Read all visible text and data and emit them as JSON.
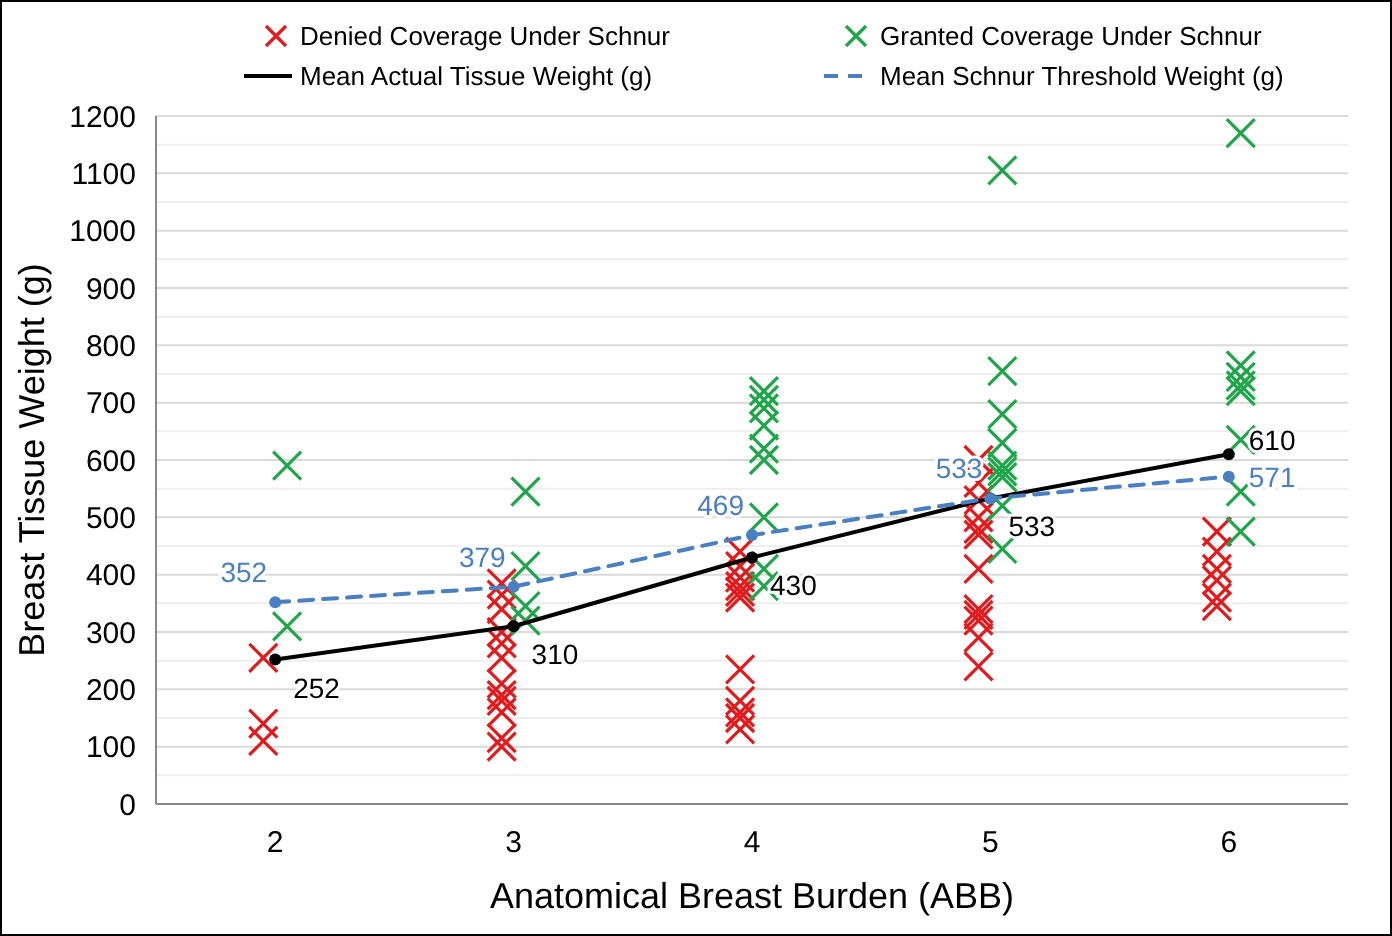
{
  "chart_data": {
    "type": "scatter",
    "xlabel": "Anatomical Breast Burden (ABB)",
    "ylabel": "Breast Tissue Weight (g)",
    "xlim": [
      1.5,
      6.5
    ],
    "xticks": [
      2,
      3,
      4,
      5,
      6
    ],
    "ylim": [
      0,
      1200
    ],
    "yticks": [
      0,
      100,
      200,
      300,
      400,
      500,
      600,
      700,
      800,
      900,
      1000,
      1100,
      1200
    ],
    "grid": "y",
    "legend": "top",
    "series": [
      {
        "name": "Denied Coverage Under Schnur",
        "marker": "cross",
        "color": "#e31a1c",
        "x": [
          1.95,
          1.95,
          1.95,
          2.95,
          2.95,
          2.95,
          2.95,
          2.95,
          2.95,
          2.95,
          2.95,
          2.95,
          2.95,
          2.95,
          2.95,
          3.95,
          3.95,
          3.95,
          3.95,
          3.95,
          3.95,
          3.95,
          3.95,
          3.95,
          3.95,
          3.95,
          4.95,
          4.95,
          4.95,
          4.95,
          4.95,
          4.95,
          4.95,
          4.95,
          4.95,
          4.95,
          4.95,
          4.95,
          5.95,
          5.95,
          5.95,
          5.95,
          5.95,
          5.95
        ],
        "values": [
          255,
          140,
          110,
          385,
          365,
          340,
          300,
          280,
          255,
          210,
          190,
          180,
          160,
          115,
          100,
          440,
          415,
          395,
          380,
          370,
          360,
          235,
          180,
          160,
          150,
          130,
          600,
          560,
          530,
          500,
          480,
          470,
          410,
          340,
          330,
          320,
          290,
          240,
          475,
          440,
          410,
          390,
          360,
          345
        ]
      },
      {
        "name": "Granted Coverage Under Schnur",
        "marker": "cross",
        "color": "#1fa64a",
        "x": [
          2.05,
          2.05,
          3.05,
          3.05,
          3.05,
          3.05,
          4.05,
          4.05,
          4.05,
          4.05,
          4.05,
          4.05,
          4.05,
          4.05,
          4.05,
          5.05,
          5.05,
          5.05,
          5.05,
          5.05,
          5.05,
          5.05,
          5.05,
          5.05,
          6.05,
          6.05,
          6.05,
          6.05,
          6.05,
          6.05,
          6.05,
          6.05
        ],
        "values": [
          590,
          310,
          545,
          415,
          345,
          320,
          720,
          705,
          690,
          660,
          620,
          600,
          500,
          410,
          380,
          1105,
          755,
          680,
          630,
          590,
          580,
          570,
          520,
          445,
          1170,
          765,
          745,
          730,
          720,
          635,
          545,
          475
        ]
      },
      {
        "name": "Mean Actual Tissue Weight (g)",
        "type": "line",
        "line_style": "solid",
        "marker": "circle",
        "color": "#000000",
        "x": [
          2,
          3,
          4,
          5,
          6
        ],
        "values": [
          252,
          310,
          430,
          533,
          610
        ],
        "value_labels": [
          "252",
          "310",
          "430",
          "533",
          "610"
        ]
      },
      {
        "name": "Mean Schnur Threshold Weight (g)",
        "type": "line",
        "line_style": "dashed",
        "marker": "circle",
        "color": "#4a7fc1",
        "x": [
          2,
          3,
          4,
          5,
          6
        ],
        "values": [
          352,
          379,
          469,
          533,
          571
        ],
        "value_labels": [
          "352",
          "379",
          "469",
          "533",
          "571"
        ]
      }
    ]
  }
}
